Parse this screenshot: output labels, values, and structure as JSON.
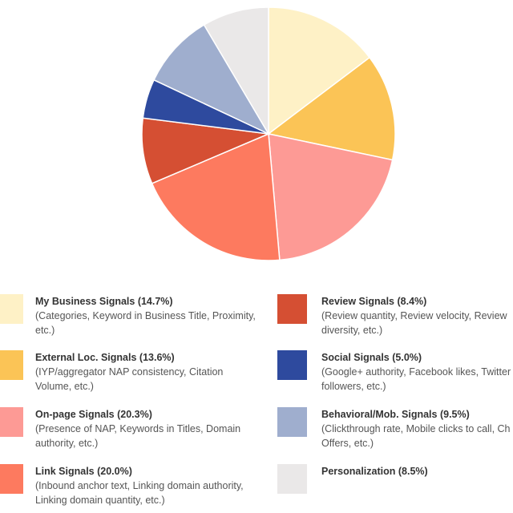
{
  "chart_data": {
    "type": "pie",
    "slices": [
      {
        "label": "My Business Signals",
        "value": 14.7,
        "color": "#FEF1C6",
        "legend_title": "My Business Signals (14.7%)",
        "legend_desc": [
          "(Categories, Keyword in Business Title, Proximity,",
          "etc.)"
        ]
      },
      {
        "label": "External Loc. Signals",
        "value": 13.6,
        "color": "#FBC456",
        "legend_title": "External Loc. Signals (13.6%)",
        "legend_desc": [
          "(IYP/aggregator NAP consistency, Citation",
          "Volume, etc.)"
        ]
      },
      {
        "label": "On-page Signals",
        "value": 20.3,
        "color": "#FD9A95",
        "legend_title": "On-page Signals (20.3%)",
        "legend_desc": [
          "(Presence of NAP, Keywords in Titles, Domain",
          "authority, etc.)"
        ]
      },
      {
        "label": "Link Signals",
        "value": 20.0,
        "color": "#FD7A5F",
        "legend_title": "Link Signals (20.0%)",
        "legend_desc": [
          "(Inbound anchor text, Linking domain authority,",
          "Linking domain quantity, etc.)"
        ]
      },
      {
        "label": "Review Signals",
        "value": 8.4,
        "color": "#D54F33",
        "legend_title": "Review Signals (8.4%)",
        "legend_desc": [
          "(Review quantity, Review velocity, Review",
          "diversity, etc.)"
        ]
      },
      {
        "label": "Social Signals",
        "value": 5.0,
        "color": "#2E4A9E",
        "legend_title": "Social Signals (5.0%)",
        "legend_desc": [
          "(Google+ authority, Facebook likes, Twitter",
          "followers, etc.)"
        ]
      },
      {
        "label": "Behavioral/Mob. Signals",
        "value": 9.5,
        "color": "#9FAECE",
        "legend_title": "Behavioral/Mob. Signals (9.5%)",
        "legend_desc": [
          "(Clickthrough rate, Mobile clicks to call, Ch",
          "Offers, etc.)"
        ]
      },
      {
        "label": "Personalization",
        "value": 8.5,
        "color": "#EAE8E8",
        "legend_title": "Personalization (8.5%)",
        "legend_desc": []
      }
    ]
  }
}
